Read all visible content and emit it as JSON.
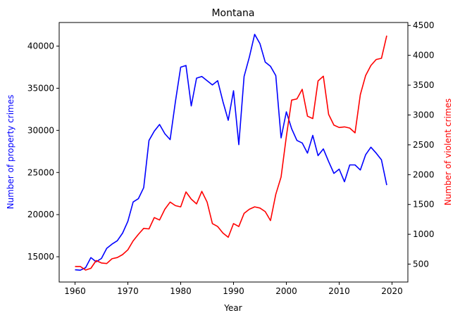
{
  "chart_data": {
    "type": "line",
    "title": "Montana",
    "xlabel": "Year",
    "ylabel_left": "Number of property crimes",
    "ylabel_right": "Number of violent crimes",
    "xlim": [
      1957,
      2023
    ],
    "ylim_left": [
      12000,
      42800
    ],
    "ylim_right": [
      200,
      4550
    ],
    "xticks": [
      1960,
      1970,
      1980,
      1990,
      2000,
      2010,
      2020
    ],
    "yticks_left": [
      15000,
      20000,
      25000,
      30000,
      35000,
      40000
    ],
    "yticks_right": [
      500,
      1000,
      1500,
      2000,
      2500,
      3000,
      3500,
      4000,
      4500
    ],
    "grid": false,
    "colors": {
      "left_axis": "#0000ff",
      "right_axis": "#ff0000"
    },
    "x": [
      1960,
      1961,
      1962,
      1963,
      1964,
      1965,
      1966,
      1967,
      1968,
      1969,
      1970,
      1971,
      1972,
      1973,
      1974,
      1975,
      1976,
      1977,
      1978,
      1979,
      1980,
      1981,
      1982,
      1983,
      1984,
      1985,
      1986,
      1987,
      1988,
      1989,
      1990,
      1991,
      1992,
      1993,
      1994,
      1995,
      1996,
      1997,
      1998,
      1999,
      2000,
      2001,
      2002,
      2003,
      2004,
      2005,
      2006,
      2007,
      2008,
      2009,
      2010,
      2011,
      2012,
      2013,
      2014,
      2015,
      2016,
      2017,
      2018,
      2019
    ],
    "series": [
      {
        "axis": "left",
        "color": "#0000ff",
        "values": [
          13450,
          13400,
          13700,
          14900,
          14400,
          14800,
          16000,
          16500,
          16900,
          17800,
          19200,
          21500,
          21900,
          23200,
          28800,
          29900,
          30700,
          29600,
          28900,
          33400,
          37500,
          37700,
          32900,
          36200,
          36400,
          35900,
          35400,
          35900,
          33400,
          31200,
          34700,
          28300,
          36400,
          38700,
          41400,
          40300,
          38100,
          37600,
          36500,
          29100,
          32200,
          30200,
          28800,
          28500,
          27300,
          29400,
          27000,
          27800,
          26300,
          24900,
          25400,
          23900,
          25900,
          25900,
          25300,
          27100,
          28000,
          27300,
          26500,
          23500
        ]
      },
      {
        "axis": "right",
        "color": "#ff0000",
        "values": [
          460,
          460,
          400,
          430,
          560,
          520,
          510,
          590,
          610,
          660,
          740,
          890,
          1000,
          1100,
          1090,
          1280,
          1240,
          1420,
          1540,
          1480,
          1460,
          1710,
          1590,
          1510,
          1720,
          1540,
          1180,
          1130,
          1020,
          950,
          1180,
          1130,
          1350,
          1420,
          1460,
          1440,
          1380,
          1230,
          1670,
          1960,
          2640,
          3250,
          3270,
          3430,
          2980,
          2940,
          3570,
          3650,
          3010,
          2830,
          2790,
          2800,
          2780,
          2700,
          3340,
          3660,
          3830,
          3930,
          3950,
          4330
        ]
      }
    ]
  }
}
